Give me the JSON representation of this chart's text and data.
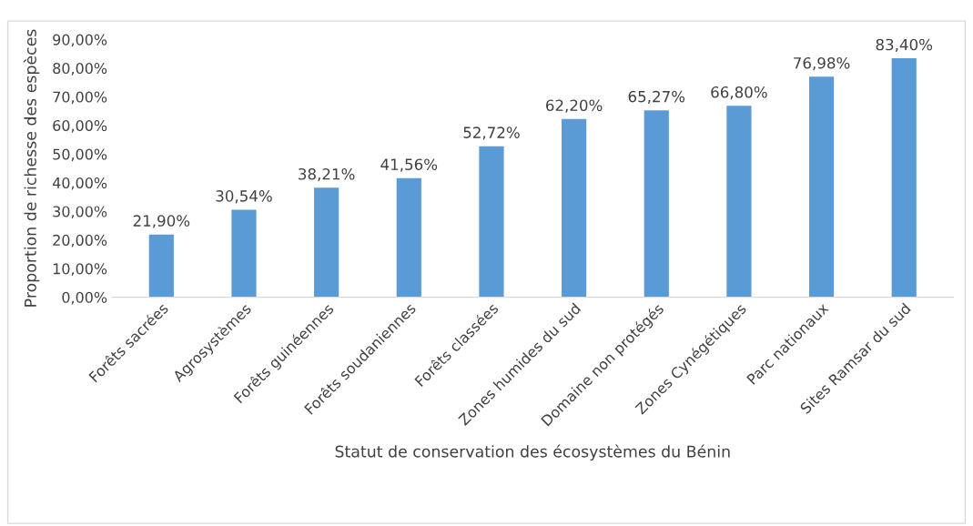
{
  "chart_data": {
    "type": "bar",
    "xlabel": "Statut de conservation des écosystèmes du Bénin",
    "ylabel": "Proportion de richesse des espèces",
    "categories": [
      "Forêts sacrées",
      "Agrosystèmes",
      "Forêts guinéennes",
      "Forêts soudaniennes",
      "Forêts classées",
      "Zones humides du sud",
      "Domaine non protégés",
      "Zones Cynégétiques",
      "Parc nationaux",
      "Sites Ramsar du sud"
    ],
    "values": [
      21.9,
      30.54,
      38.21,
      41.56,
      52.72,
      62.2,
      65.27,
      66.8,
      76.98,
      83.4
    ],
    "value_labels": [
      "21,90%",
      "30,54%",
      "38,21%",
      "41,56%",
      "52,72%",
      "62,20%",
      "65,27%",
      "66,80%",
      "76,98%",
      "83,40%"
    ],
    "color": "#5b9bd5",
    "ylim": [
      0,
      90
    ],
    "yticks": [
      {
        "value": 0,
        "label": "0,00%"
      },
      {
        "value": 10,
        "label": "10,00%"
      },
      {
        "value": 20,
        "label": "20,00%"
      },
      {
        "value": 30,
        "label": "30,00%"
      },
      {
        "value": 40,
        "label": "40,00%"
      },
      {
        "value": 50,
        "label": "50,00%"
      },
      {
        "value": 60,
        "label": "60,00%"
      },
      {
        "value": 70,
        "label": "70,00%"
      },
      {
        "value": 80,
        "label": "80,00%"
      },
      {
        "value": 90,
        "label": "90,00%"
      }
    ],
    "grid": false,
    "legend": false
  }
}
